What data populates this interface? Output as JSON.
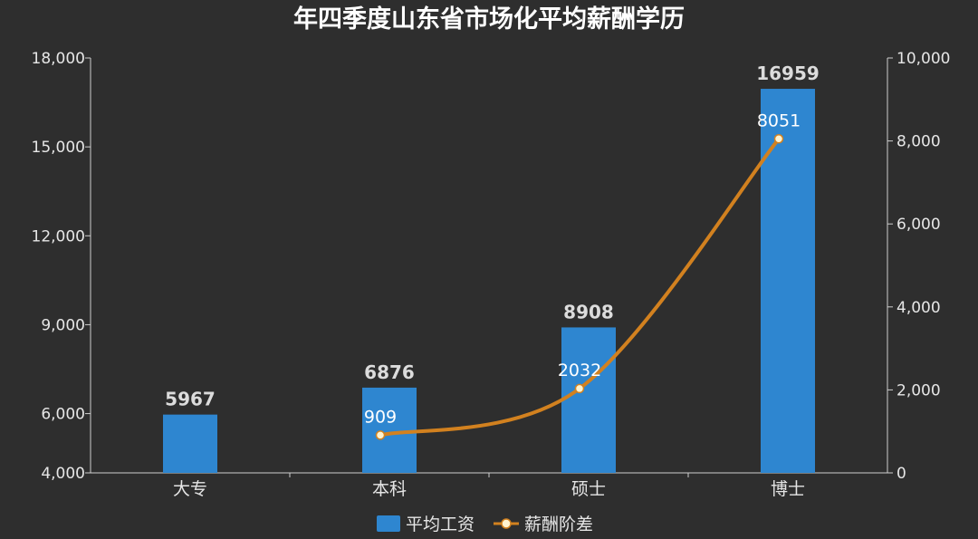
{
  "chart_data": {
    "type": "bar",
    "title": "年四季度山东省市场化平均薪酬学历",
    "categories": [
      "大专",
      "本科",
      "硕士",
      "博士"
    ],
    "series": [
      {
        "name": "平均工资",
        "type": "bar",
        "axis": "left",
        "color": "#2e86d0",
        "values": [
          5967,
          6876,
          8908,
          16959
        ]
      },
      {
        "name": "薪酬阶差",
        "type": "line",
        "axis": "right",
        "smooth": true,
        "color": "#d2811f",
        "values": [
          null,
          909,
          2032,
          8051
        ]
      }
    ],
    "y_left": {
      "min": 4000,
      "max": 18000,
      "ticks": [
        4000,
        6000,
        9000,
        12000,
        15000,
        18000
      ],
      "tick_labels": [
        "4,000",
        "6,000",
        "9,000",
        "12,000",
        "15,000",
        "18,000"
      ]
    },
    "y_right": {
      "min": 0,
      "max": 10000,
      "ticks": [
        0,
        2000,
        4000,
        6000,
        8000,
        10000
      ],
      "tick_labels": [
        "0",
        "2,000",
        "4,000",
        "6,000",
        "8,000",
        "10,000"
      ]
    },
    "grid": false,
    "legend_position": "bottom-center"
  }
}
